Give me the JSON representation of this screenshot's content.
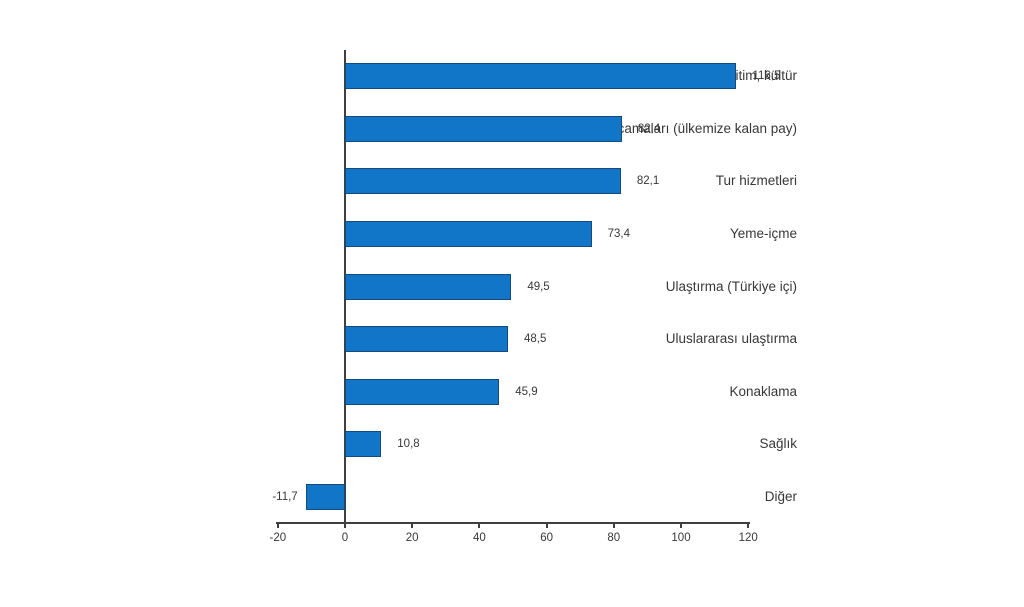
{
  "chart_data": {
    "type": "bar",
    "orientation": "horizontal",
    "title": "",
    "xlabel": "",
    "ylabel": "",
    "categories": [
      "Spor, eğitim, kültür",
      "harcamaları (ülkemize kalan pay)",
      "Tur hizmetleri",
      "Yeme-içme",
      "Ulaştırma (Türkiye içi)",
      "Uluslararası ulaştırma",
      "Konaklama",
      "Sağlık",
      "Diğer"
    ],
    "values": [
      116.5,
      82.4,
      82.1,
      73.4,
      49.5,
      48.5,
      45.9,
      10.8,
      -11.7
    ],
    "value_labels": [
      "116,5",
      "82,4",
      "82,1",
      "73,4",
      "49,5",
      "48,5",
      "45,9",
      "10,8",
      "-11,7"
    ],
    "x_ticks": [
      -20,
      0,
      20,
      40,
      60,
      80,
      100,
      120
    ],
    "x_tick_labels": [
      "-20",
      "0",
      "20",
      "40",
      "60",
      "80",
      "100",
      "120"
    ],
    "xlim": [
      -20,
      120
    ],
    "grid": false,
    "legend": false,
    "bar_color": "#1175c8",
    "bar_border_color": "#154a7c",
    "axis_color": "#3f3f3f",
    "text_color": "#383838",
    "background_color": "#ffffff"
  }
}
